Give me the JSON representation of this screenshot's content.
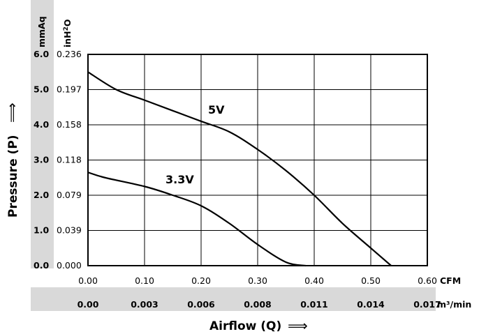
{
  "chart_data": {
    "type": "line",
    "x_axis": {
      "label": "Airflow (Q)",
      "arrow": "⟹",
      "range": [
        0,
        0.6
      ],
      "unit_primary": "CFM",
      "ticks_primary": [
        "0.00",
        "0.10",
        "0.20",
        "0.30",
        "0.40",
        "0.50",
        "0.60"
      ],
      "unit_secondary": "m³/min",
      "ticks_secondary": [
        "0.00",
        "0.003",
        "0.006",
        "0.008",
        "0.011",
        "0.014",
        "0.017"
      ]
    },
    "y_axis": {
      "label": "Pressure (P)",
      "arrow": "⟹",
      "range": [
        0,
        6
      ],
      "unit_primary": "mmAq",
      "ticks_primary": [
        "0.0",
        "1.0",
        "2.0",
        "3.0",
        "4.0",
        "5.0",
        "6.0"
      ],
      "unit_secondary": "inH2O",
      "unit_secondary_base": "inH",
      "unit_secondary_sub": "2",
      "unit_secondary_tail": "O",
      "ticks_secondary": [
        "0.000",
        "0.039",
        "0.079",
        "0.118",
        "0.158",
        "0.197",
        "0.236"
      ]
    },
    "grid": true,
    "series": [
      {
        "name": "5V",
        "x": [
          0.0,
          0.05,
          0.1,
          0.15,
          0.2,
          0.25,
          0.3,
          0.35,
          0.4,
          0.45,
          0.5,
          0.536
        ],
        "y": [
          5.5,
          5.0,
          4.7,
          4.4,
          4.1,
          3.8,
          3.3,
          2.7,
          2.0,
          1.2,
          0.5,
          0.0
        ]
      },
      {
        "name": "3.3V",
        "x": [
          0.0,
          0.03,
          0.1,
          0.15,
          0.2,
          0.25,
          0.3,
          0.35,
          0.385
        ],
        "y": [
          2.65,
          2.5,
          2.25,
          2.0,
          1.7,
          1.2,
          0.6,
          0.1,
          0.0
        ]
      }
    ]
  }
}
